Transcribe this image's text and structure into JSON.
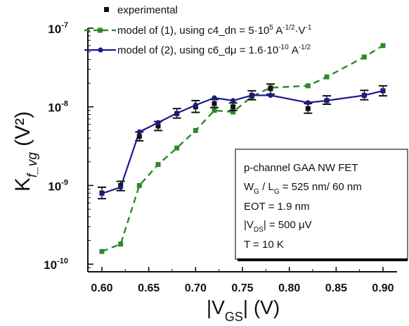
{
  "chart_data": {
    "type": "line",
    "y_scale": "log",
    "x_range": [
      0.585,
      0.915
    ],
    "y_range": [
      8e-11,
      1e-07
    ],
    "x_ticks": [
      0.6,
      0.65,
      0.7,
      0.75,
      0.8,
      0.85,
      0.9
    ],
    "x_tick_labels": [
      "0.60",
      "0.65",
      "0.70",
      "0.75",
      "0.80",
      "0.85",
      "0.90"
    ],
    "y_ticks": [
      {
        "value": 1e-10,
        "base": "10",
        "exp": "-10"
      },
      {
        "value": 1e-09,
        "base": "10",
        "exp": "-9"
      },
      {
        "value": 1e-08,
        "base": "10",
        "exp": "-8"
      },
      {
        "value": 1e-07,
        "base": "10",
        "exp": "-7"
      }
    ],
    "ylabel": {
      "main": "K",
      "sub": "f_vg",
      "rest": " (V²)"
    },
    "xlabel": {
      "pre": "|V",
      "sub": "GS",
      "post": "| (V)"
    },
    "legend": {
      "placement": "top-right",
      "experimental": "experimental",
      "model1": {
        "text": "model of (1), using c4_dn = 5·10",
        "exp": "5",
        "units_a": " A",
        "units_a_exp": "-1/2",
        "units_b": "·V",
        "units_b_exp": "-1"
      },
      "model2": {
        "text": "model of (2), using c6_dμ = 1.6·10",
        "exp": "-10",
        "units_a": " A",
        "units_a_exp": "-1/2"
      }
    },
    "series": [
      {
        "name": "experimental",
        "color": "#111111",
        "marker": "square",
        "x": [
          0.6,
          0.62,
          0.64,
          0.66,
          0.68,
          0.7,
          0.72,
          0.74,
          0.76,
          0.78,
          0.82,
          0.84,
          0.88,
          0.9
        ],
        "y": [
          8e-10,
          1e-09,
          4.2e-09,
          5.7e-09,
          8.2e-09,
          1e-08,
          1.1e-08,
          1e-08,
          1.4e-08,
          1.7e-08,
          9.5e-09,
          1.2e-08,
          1.4e-08,
          1.6e-08
        ],
        "err_low": [
          6.8e-10,
          8.6e-10,
          3.7e-09,
          5e-09,
          7.2e-09,
          8.5e-09,
          9.8e-09,
          9e-09,
          1.23e-08,
          1.45e-08,
          8.3e-09,
          1.08e-08,
          1.23e-08,
          1.38e-08
        ],
        "err_high": [
          9.5e-10,
          1.13e-09,
          4.8e-09,
          6.5e-09,
          9.5e-09,
          1.2e-08,
          1.24e-08,
          1.12e-08,
          1.6e-08,
          1.95e-08,
          1.1e-08,
          1.38e-08,
          1.62e-08,
          1.85e-08
        ]
      },
      {
        "name": "model of (1)",
        "color": "#2a8a2a",
        "style": "dashed",
        "marker": "square",
        "x": [
          0.6,
          0.62,
          0.64,
          0.66,
          0.68,
          0.7,
          0.72,
          0.74,
          0.76,
          0.78,
          0.82,
          0.84,
          0.88,
          0.9
        ],
        "y": [
          1.45e-10,
          1.8e-10,
          1e-09,
          1.85e-09,
          3e-09,
          5e-09,
          9e-09,
          8.6e-09,
          1.35e-08,
          1.75e-08,
          1.85e-08,
          2.4e-08,
          4.3e-08,
          6e-08
        ]
      },
      {
        "name": "model of (2)",
        "color": "#1a1a8c",
        "style": "solid",
        "marker": "circle",
        "x": [
          0.6,
          0.62,
          0.64,
          0.66,
          0.68,
          0.7,
          0.72,
          0.74,
          0.76,
          0.78,
          0.82,
          0.84,
          0.88,
          0.9
        ],
        "y": [
          7.9e-10,
          9.5e-10,
          4.8e-09,
          6.3e-09,
          8.3e-09,
          1.05e-08,
          1.3e-08,
          1.2e-08,
          1.4e-08,
          1.4e-08,
          1.13e-08,
          1.2e-08,
          1.4e-08,
          1.6e-08
        ]
      }
    ],
    "info_box": {
      "line1": "p-channel GAA NW FET",
      "line2": {
        "a": "W",
        "a_sub": "G",
        "b": " / L",
        "b_sub": "G",
        "c": " = 525 nm/ 60 nm"
      },
      "line3": "EOT = 1.9 nm",
      "line4": {
        "a": "|V",
        "a_sub": "DS",
        "b": "| = 500 μV"
      },
      "line5": "T = 10 K"
    }
  }
}
